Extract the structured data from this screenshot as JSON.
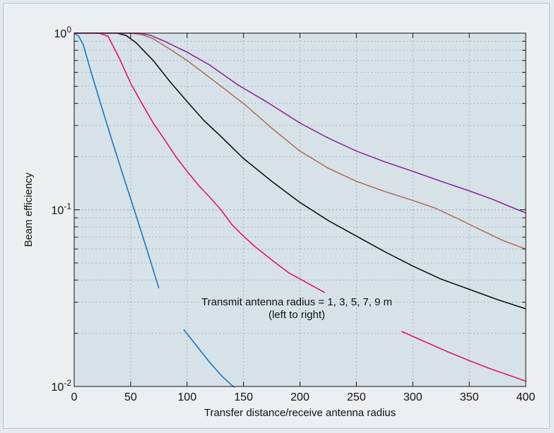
{
  "chart_data": {
    "type": "line",
    "title": "",
    "xlabel": "Transfer distance/receive antenna radius",
    "ylabel": "Beam efficiency",
    "xlim": [
      0,
      400
    ],
    "ylim": [
      0.01,
      1
    ],
    "yscale": "log",
    "grid": true,
    "x_ticks": [
      0,
      50,
      100,
      150,
      200,
      250,
      300,
      350,
      400
    ],
    "y_ticks": [
      {
        "base": "10",
        "exp": "0",
        "value": 1
      },
      {
        "base": "10",
        "exp": "-1",
        "value": 0.1
      },
      {
        "base": "10",
        "exp": "-2",
        "value": 0.01
      }
    ],
    "annotation": {
      "line1": "Transmit antenna radius = 1, 3, 5, 7, 9 m",
      "line2": "(left to right)"
    },
    "series": [
      {
        "color": "#1b74bf",
        "segments": [
          [
            [
              0,
              1.0
            ],
            [
              4,
              0.96
            ],
            [
              8,
              0.86
            ],
            [
              15,
              0.6
            ],
            [
              25,
              0.37
            ],
            [
              35,
              0.23
            ],
            [
              45,
              0.145
            ],
            [
              55,
              0.092
            ],
            [
              65,
              0.058
            ],
            [
              75,
              0.036
            ]
          ],
          [
            [
              97,
              0.021
            ],
            [
              110,
              0.0165
            ],
            [
              120,
              0.0137
            ],
            [
              130,
              0.0116
            ],
            [
              140,
              0.0101
            ],
            [
              142,
              0.0099
            ]
          ]
        ]
      },
      {
        "color": "#e3126c",
        "segments": [
          [
            [
              0,
              1.0
            ],
            [
              22,
              1.0
            ],
            [
              30,
              0.96
            ],
            [
              40,
              0.72
            ],
            [
              50,
              0.52
            ],
            [
              60,
              0.4
            ],
            [
              70,
              0.31
            ],
            [
              80,
              0.25
            ],
            [
              90,
              0.2
            ],
            [
              100,
              0.165
            ],
            [
              110,
              0.138
            ],
            [
              120,
              0.118
            ],
            [
              130,
              0.1
            ],
            [
              140,
              0.082
            ],
            [
              150,
              0.071
            ],
            [
              160,
              0.062
            ],
            [
              175,
              0.052
            ],
            [
              190,
              0.044
            ],
            [
              205,
              0.039
            ],
            [
              222,
              0.034
            ]
          ],
          [
            [
              290,
              0.0205
            ],
            [
              310,
              0.018
            ],
            [
              330,
              0.0158
            ],
            [
              350,
              0.014
            ],
            [
              370,
              0.0125
            ],
            [
              390,
              0.0113
            ],
            [
              400,
              0.0107
            ]
          ]
        ]
      },
      {
        "color": "#111111",
        "segments": [
          [
            [
              0,
              1.0
            ],
            [
              38,
              1.0
            ],
            [
              46,
              0.97
            ],
            [
              55,
              0.88
            ],
            [
              70,
              0.7
            ],
            [
              85,
              0.53
            ],
            [
              100,
              0.41
            ],
            [
              115,
              0.32
            ],
            [
              130,
              0.26
            ],
            [
              150,
              0.195
            ],
            [
              175,
              0.145
            ],
            [
              200,
              0.11
            ],
            [
              225,
              0.087
            ],
            [
              250,
              0.071
            ],
            [
              275,
              0.058
            ],
            [
              300,
              0.048
            ],
            [
              325,
              0.0405
            ],
            [
              350,
              0.0355
            ],
            [
              375,
              0.031
            ],
            [
              400,
              0.0275
            ]
          ]
        ]
      },
      {
        "color": "#b07060",
        "segments": [
          [
            [
              0,
              1.0
            ],
            [
              50,
              1.0
            ],
            [
              60,
              0.98
            ],
            [
              70,
              0.93
            ],
            [
              85,
              0.81
            ],
            [
              100,
              0.7
            ],
            [
              125,
              0.53
            ],
            [
              150,
              0.4
            ],
            [
              175,
              0.29
            ],
            [
              200,
              0.215
            ],
            [
              225,
              0.172
            ],
            [
              250,
              0.145
            ],
            [
              275,
              0.127
            ],
            [
              300,
              0.113
            ],
            [
              320,
              0.102
            ],
            [
              340,
              0.089
            ],
            [
              360,
              0.077
            ],
            [
              380,
              0.067
            ],
            [
              400,
              0.06
            ]
          ]
        ]
      },
      {
        "color": "#8e2a96",
        "segments": [
          [
            [
              0,
              1.0
            ],
            [
              58,
              1.0
            ],
            [
              68,
              0.97
            ],
            [
              80,
              0.9
            ],
            [
              100,
              0.78
            ],
            [
              120,
              0.66
            ],
            [
              145,
              0.51
            ],
            [
              170,
              0.41
            ],
            [
              200,
              0.31
            ],
            [
              225,
              0.255
            ],
            [
              250,
              0.215
            ],
            [
              275,
              0.187
            ],
            [
              300,
              0.165
            ],
            [
              325,
              0.145
            ],
            [
              350,
              0.128
            ],
            [
              370,
              0.115
            ],
            [
              385,
              0.105
            ],
            [
              400,
              0.096
            ]
          ]
        ]
      }
    ]
  }
}
